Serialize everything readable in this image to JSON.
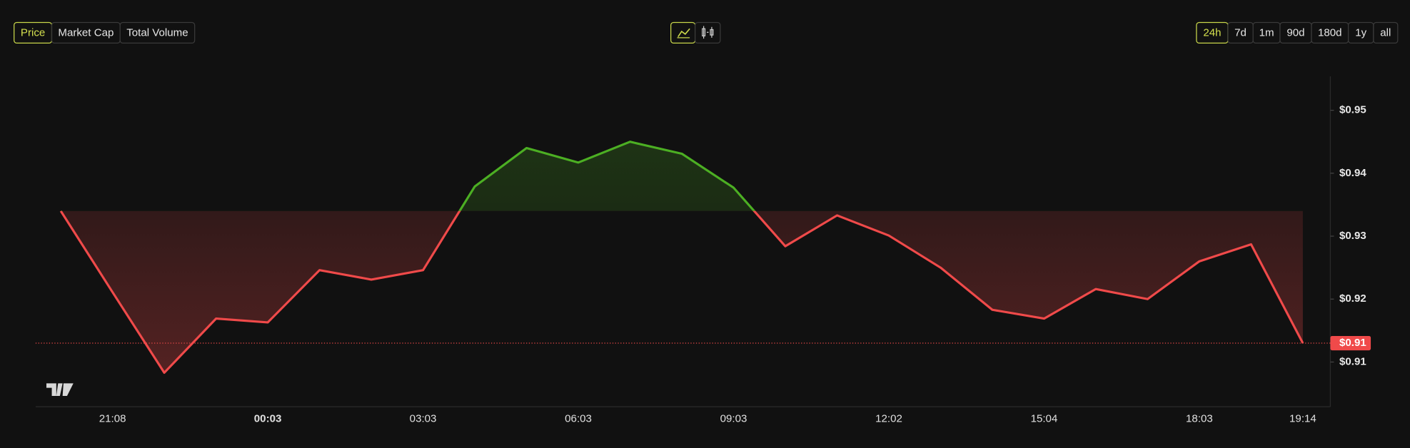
{
  "metric_tabs": [
    "Price",
    "Market Cap",
    "Total Volume"
  ],
  "range_tabs": [
    "24h",
    "7d",
    "1m",
    "90d",
    "180d",
    "1y",
    "all"
  ],
  "chart_data": {
    "type": "line",
    "categories": [
      null,
      "21:08",
      null,
      null,
      "00:03",
      null,
      null,
      "03:03",
      null,
      null,
      "06:03",
      null,
      null,
      "09:03",
      null,
      null,
      "12:02",
      null,
      null,
      "15:04",
      null,
      null,
      "18:03",
      null,
      "19:14"
    ],
    "values": [
      0.934,
      0.9211,
      0.9083,
      0.9169,
      0.9163,
      0.9246,
      0.9231,
      0.9246,
      0.9379,
      0.944,
      0.9417,
      0.945,
      0.9431,
      0.9377,
      0.9284,
      0.9333,
      0.9301,
      0.925,
      0.9183,
      0.9169,
      0.9216,
      0.92,
      0.926,
      0.9287,
      0.913
    ],
    "last_value_label": "$0.91",
    "up_color": "#4caf23",
    "down_color": "#f04a4a",
    "ylim": [
      0.9029,
      0.9554
    ],
    "yticks": [
      {
        "value": 0.91,
        "label": "$0.91"
      },
      {
        "value": 0.92,
        "label": "$0.92"
      },
      {
        "value": 0.93,
        "label": "$0.93"
      },
      {
        "value": 0.94,
        "label": "$0.94"
      },
      {
        "value": 0.95,
        "label": "$0.95"
      }
    ]
  }
}
